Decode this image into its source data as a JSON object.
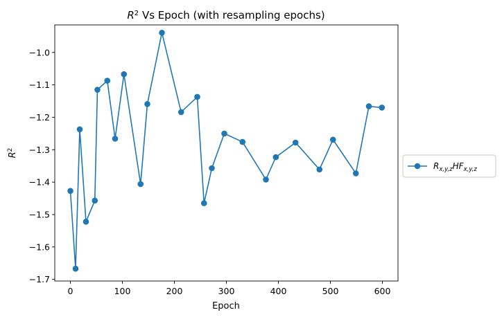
{
  "chart_data": {
    "type": "line",
    "title_parts": {
      "r": "R",
      "sup": "2",
      "rest": " Vs Epoch (with resampling epochs)"
    },
    "xlabel": "Epoch",
    "ylabel_parts": {
      "r": "R",
      "sup": "2"
    },
    "xlim": [
      -30,
      630
    ],
    "ylim": [
      -1.705,
      -0.915
    ],
    "xticks": [
      0,
      100,
      200,
      300,
      400,
      500,
      600
    ],
    "xtick_labels": [
      "0",
      "100",
      "200",
      "300",
      "400",
      "500",
      "600"
    ],
    "yticks": [
      -1.7,
      -1.6,
      -1.5,
      -1.4,
      -1.3,
      -1.2,
      -1.1,
      -1.0
    ],
    "ytick_labels": [
      "−1.7",
      "−1.6",
      "−1.5",
      "−1.4",
      "−1.3",
      "−1.2",
      "−1.1",
      "−1.0"
    ],
    "grid": false,
    "legend_position": "outside-right",
    "series": [
      {
        "name_parts": {
          "r": "R",
          "r_sub": "x,y,z",
          "hf": "HF",
          "hf_sub": "x,y,z"
        },
        "color": "#1f77b4",
        "marker": "circle",
        "x": [
          0,
          10,
          18,
          30,
          47,
          52,
          71,
          86,
          103,
          135,
          148,
          176,
          213,
          244,
          257,
          272,
          296,
          331,
          376,
          395,
          433,
          479,
          505,
          549,
          574,
          599
        ],
        "y": [
          -1.427,
          -1.667,
          -1.237,
          -1.522,
          -1.457,
          -1.115,
          -1.087,
          -1.266,
          -1.067,
          -1.406,
          -1.159,
          -0.939,
          -1.184,
          -1.137,
          -1.465,
          -1.357,
          -1.25,
          -1.276,
          -1.392,
          -1.323,
          -1.278,
          -1.361,
          -1.269,
          -1.373,
          -1.166,
          -1.17
        ]
      }
    ]
  }
}
